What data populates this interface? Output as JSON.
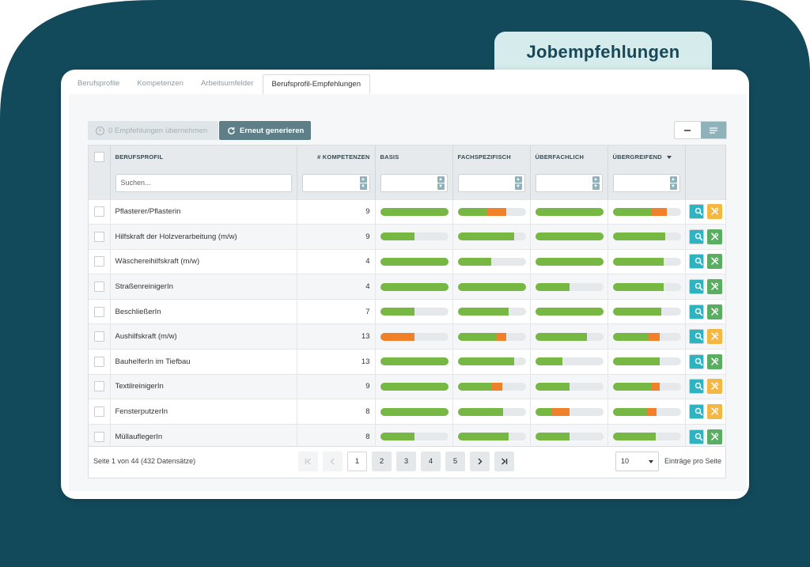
{
  "colors": {
    "background_shape": "#124a5c",
    "title_tab": "#d6ecec",
    "bar_green": "#76b843",
    "bar_orange": "#f0812a",
    "bar_empty": "#e6e9eb",
    "search_button": "#2fb3c0",
    "tools_button_green": "#5aae62",
    "tools_button_orange": "#f4b842",
    "regen_button": "#5f7f88"
  },
  "header": {
    "title": "Jobempfehlungen"
  },
  "tabs": [
    {
      "label": "Berufsprofile",
      "active": false
    },
    {
      "label": "Kompetenzen",
      "active": false
    },
    {
      "label": "Arbeitsumfelder",
      "active": false
    },
    {
      "label": "Berufsprofil-Empfehlungen",
      "active": true
    }
  ],
  "toolbar": {
    "accept_label": "0 Empfehlungen übernehmen",
    "regen_label": "Erneut generieren",
    "accept_icon": "plus-circle-icon",
    "regen_icon": "refresh-icon"
  },
  "table": {
    "columns": [
      "BERUFSPROFIL",
      "# KOMPETENZEN",
      "BASIS",
      "FACHSPEZIFISCH",
      "ÜBERFACHLICH",
      "ÜBERGREIFEND"
    ],
    "sorted_column": "ÜBERGREIFEND",
    "sort_direction": "descending",
    "search_placeholder": "Suchen...",
    "rows": [
      {
        "name": "Pflasterer/Pflasterin",
        "count": "9",
        "basis": [
          1.0,
          0
        ],
        "fach": [
          0.43,
          0.28
        ],
        "ueberf": [
          1.0,
          0
        ],
        "uebergr": [
          0.57,
          0.23
        ],
        "tool": "orange"
      },
      {
        "name": "Hilfskraft der Holzverarbeitung (m/w)",
        "count": "9",
        "basis": [
          0.5,
          0
        ],
        "fach": [
          0.83,
          0
        ],
        "ueberf": [
          1.0,
          0
        ],
        "uebergr": [
          0.77,
          0
        ],
        "tool": "green"
      },
      {
        "name": "Wäschereihilfskraft (m/w)",
        "count": "4",
        "basis": [
          1.0,
          0
        ],
        "fach": [
          0.49,
          0
        ],
        "ueberf": [
          1.0,
          0
        ],
        "uebergr": [
          0.75,
          0
        ],
        "tool": "green"
      },
      {
        "name": "StraßenreinigerIn",
        "count": "4",
        "basis": [
          1.0,
          0
        ],
        "fach": [
          1.0,
          0
        ],
        "ueberf": [
          0.5,
          0
        ],
        "uebergr": [
          0.75,
          0
        ],
        "tool": "green"
      },
      {
        "name": "BeschließerIn",
        "count": "7",
        "basis": [
          0.5,
          0
        ],
        "fach": [
          0.75,
          0
        ],
        "ueberf": [
          1.0,
          0
        ],
        "uebergr": [
          0.72,
          0
        ],
        "tool": "green"
      },
      {
        "name": "Aushilfskraft (m/w)",
        "count": "13",
        "basis": [
          0,
          0.5
        ],
        "fach": [
          0.57,
          0.15
        ],
        "ueberf": [
          0.76,
          0
        ],
        "uebergr": [
          0.53,
          0.16
        ],
        "tool": "orange"
      },
      {
        "name": "BauhelferIn im Tiefbau",
        "count": "13",
        "basis": [
          1.0,
          0
        ],
        "fach": [
          0.83,
          0
        ],
        "ueberf": [
          0.4,
          0
        ],
        "uebergr": [
          0.69,
          0
        ],
        "tool": "green"
      },
      {
        "name": "TextilreinigerIn",
        "count": "9",
        "basis": [
          1.0,
          0
        ],
        "fach": [
          0.49,
          0.17
        ],
        "ueberf": [
          0.5,
          0
        ],
        "uebergr": [
          0.57,
          0.12
        ],
        "tool": "orange"
      },
      {
        "name": "FensterputzerIn",
        "count": "8",
        "basis": [
          1.0,
          0
        ],
        "fach": [
          0.67,
          0
        ],
        "ueberf": [
          0.25,
          0.25
        ],
        "uebergr": [
          0.51,
          0.13
        ],
        "tool": "orange"
      },
      {
        "name": "MüllauflegerIn",
        "count": "8",
        "basis": [
          0.5,
          0
        ],
        "fach": [
          0.75,
          0
        ],
        "ueberf": [
          0.5,
          0
        ],
        "uebergr": [
          0.63,
          0
        ],
        "tool": "green"
      }
    ]
  },
  "footer": {
    "page_info": "Seite 1 von 44 (432 Datensätze)",
    "pages": [
      "1",
      "2",
      "3",
      "4",
      "5"
    ],
    "current_page": "1",
    "page_size": "10",
    "page_size_label": "Einträge pro Seite"
  }
}
